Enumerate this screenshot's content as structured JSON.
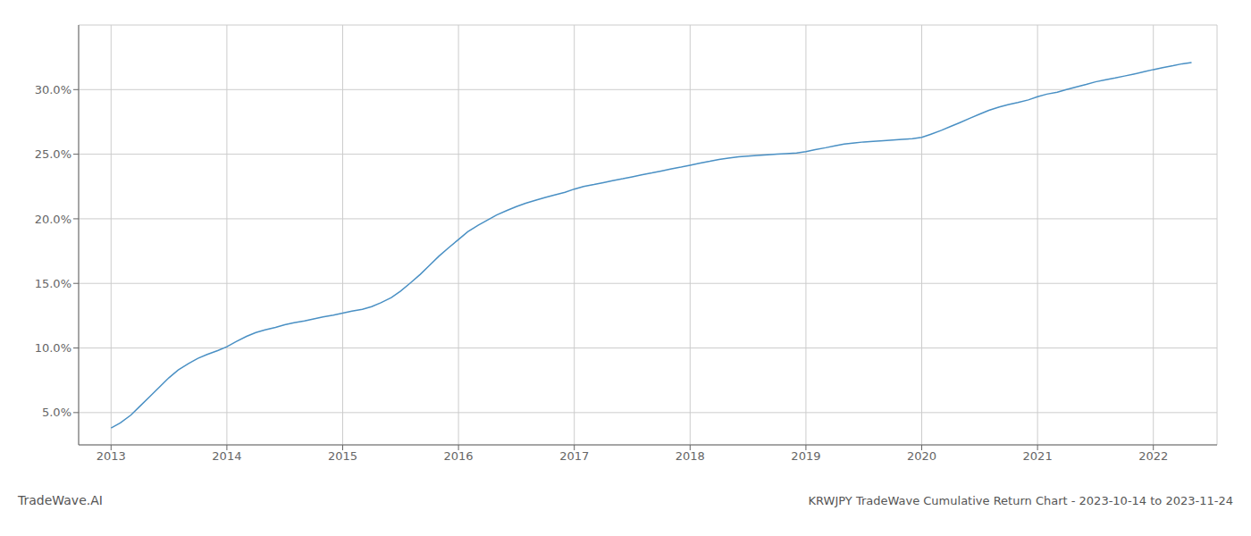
{
  "chart_data": {
    "type": "line",
    "title": "KRWJPY TradeWave Cumulative Return Chart - 2023-10-14 to 2023-11-24",
    "annotations": [
      "TradeWave.AI"
    ],
    "x": [
      2013.0,
      2013.08,
      2013.17,
      2013.25,
      2013.33,
      2013.42,
      2013.5,
      2013.58,
      2013.67,
      2013.75,
      2013.83,
      2013.92,
      2014.0,
      2014.08,
      2014.17,
      2014.25,
      2014.33,
      2014.42,
      2014.5,
      2014.58,
      2014.67,
      2014.75,
      2014.83,
      2014.92,
      2015.0,
      2015.08,
      2015.17,
      2015.25,
      2015.33,
      2015.42,
      2015.5,
      2015.58,
      2015.67,
      2015.75,
      2015.83,
      2015.92,
      2016.0,
      2016.08,
      2016.17,
      2016.25,
      2016.33,
      2016.42,
      2016.5,
      2016.58,
      2016.67,
      2016.75,
      2016.83,
      2016.92,
      2017.0,
      2017.08,
      2017.17,
      2017.25,
      2017.33,
      2017.42,
      2017.5,
      2017.58,
      2017.67,
      2017.75,
      2017.83,
      2017.92,
      2018.0,
      2018.08,
      2018.17,
      2018.25,
      2018.33,
      2018.42,
      2018.5,
      2018.58,
      2018.67,
      2018.75,
      2018.83,
      2018.92,
      2019.0,
      2019.08,
      2019.17,
      2019.25,
      2019.33,
      2019.42,
      2019.5,
      2019.58,
      2019.67,
      2019.75,
      2019.83,
      2019.92,
      2020.0,
      2020.08,
      2020.17,
      2020.25,
      2020.33,
      2020.42,
      2020.5,
      2020.58,
      2020.67,
      2020.75,
      2020.83,
      2020.92,
      2021.0,
      2021.08,
      2021.17,
      2021.25,
      2021.33,
      2021.42,
      2021.5,
      2021.58,
      2021.67,
      2021.75,
      2021.83,
      2021.92,
      2022.0,
      2022.08,
      2022.17,
      2022.25,
      2022.33
    ],
    "values": [
      3.8,
      4.2,
      4.8,
      5.5,
      6.2,
      7.0,
      7.7,
      8.3,
      8.8,
      9.2,
      9.5,
      9.8,
      10.1,
      10.5,
      10.9,
      11.2,
      11.4,
      11.6,
      11.8,
      11.95,
      12.1,
      12.25,
      12.4,
      12.55,
      12.7,
      12.85,
      13.0,
      13.2,
      13.5,
      13.9,
      14.4,
      15.0,
      15.7,
      16.4,
      17.1,
      17.8,
      18.4,
      19.0,
      19.5,
      19.9,
      20.3,
      20.65,
      20.95,
      21.2,
      21.45,
      21.65,
      21.85,
      22.05,
      22.3,
      22.5,
      22.65,
      22.8,
      22.95,
      23.1,
      23.25,
      23.4,
      23.55,
      23.7,
      23.85,
      24.0,
      24.15,
      24.3,
      24.45,
      24.6,
      24.7,
      24.8,
      24.85,
      24.9,
      24.95,
      25.0,
      25.05,
      25.1,
      25.2,
      25.35,
      25.5,
      25.65,
      25.78,
      25.88,
      25.95,
      26.0,
      26.05,
      26.1,
      26.15,
      26.2,
      26.3,
      26.55,
      26.85,
      27.15,
      27.45,
      27.8,
      28.1,
      28.4,
      28.65,
      28.85,
      29.0,
      29.2,
      29.45,
      29.65,
      29.8,
      30.0,
      30.2,
      30.4,
      30.6,
      30.75,
      30.9,
      31.05,
      31.2,
      31.38,
      31.55,
      31.7,
      31.85,
      32.0,
      32.1
    ],
    "color": "#4a90c4",
    "xlim": [
      2012.72,
      2022.55
    ],
    "xticks": [
      2013,
      2014,
      2015,
      2016,
      2017,
      2018,
      2019,
      2020,
      2021,
      2022
    ],
    "ylim": [
      2.5,
      35.0
    ],
    "yticks": [
      {
        "value": 5.0,
        "label": "5.0%"
      },
      {
        "value": 10.0,
        "label": "10.0%"
      },
      {
        "value": 15.0,
        "label": "15.0%"
      },
      {
        "value": 20.0,
        "label": "20.0%"
      },
      {
        "value": 25.0,
        "label": "25.0%"
      },
      {
        "value": 30.0,
        "label": "30.0%"
      }
    ],
    "grid": true
  }
}
